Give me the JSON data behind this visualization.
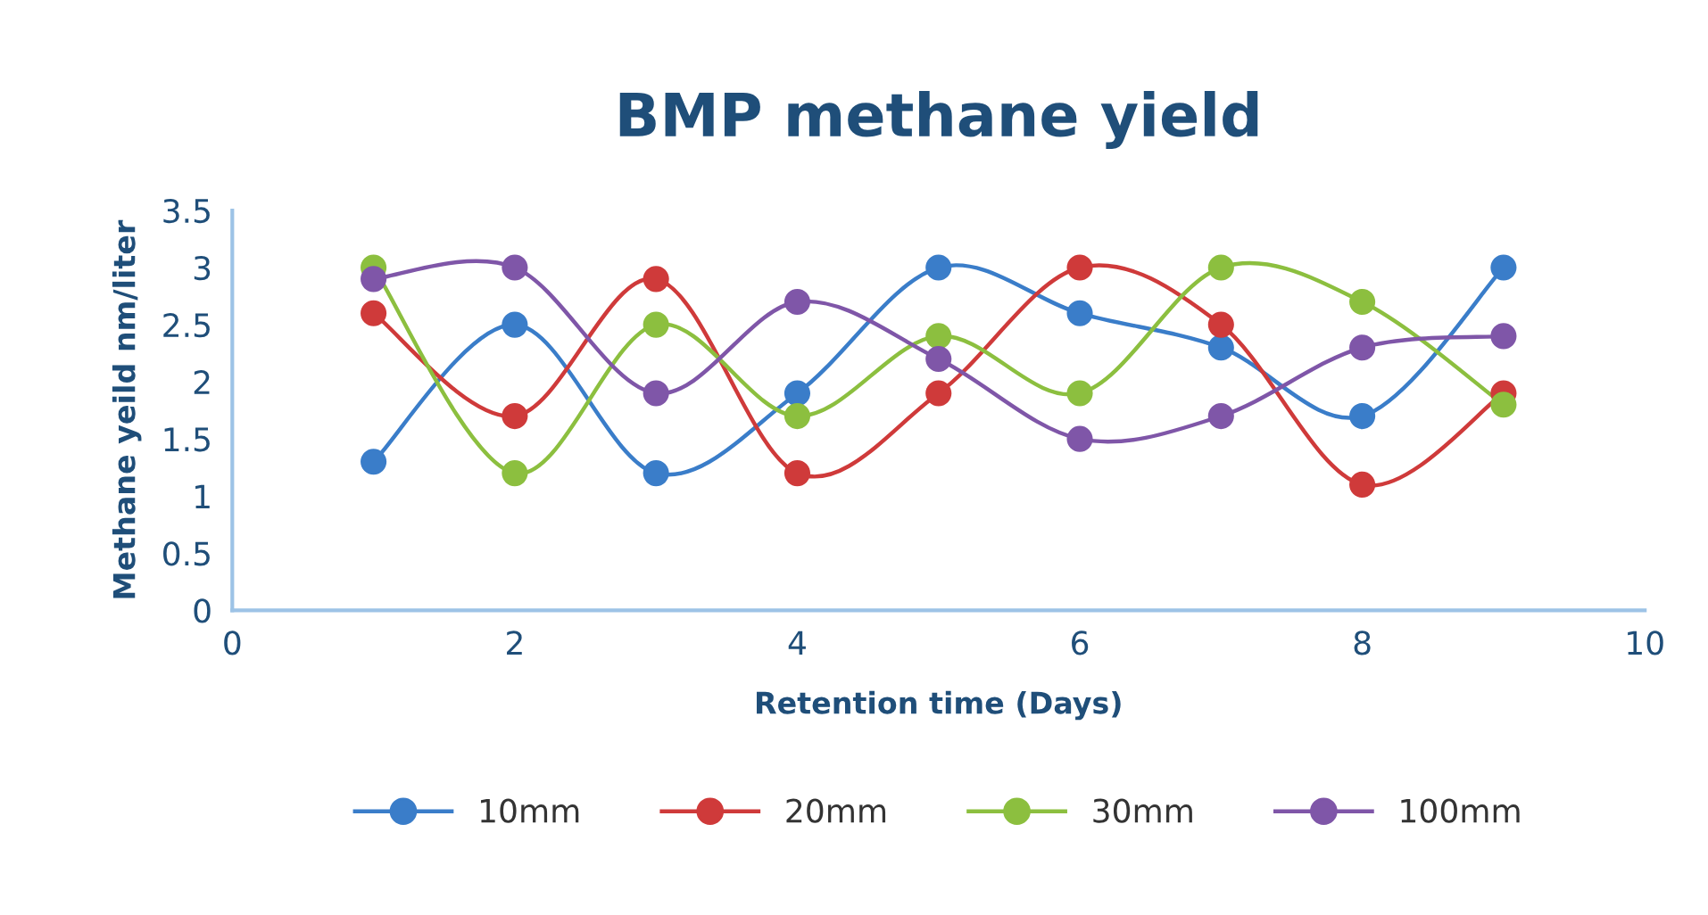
{
  "chart_data": {
    "type": "line",
    "title": "BMP methane yield",
    "xlabel": "Retention time (Days)",
    "ylabel": "Methane yeild nm/liter",
    "x": [
      1,
      2,
      3,
      4,
      5,
      6,
      7,
      8,
      9
    ],
    "series": [
      {
        "name": "10mm",
        "color": "#3a7dc9",
        "values": [
          1.3,
          2.5,
          1.2,
          1.9,
          3.0,
          2.6,
          2.3,
          1.7,
          3.0
        ]
      },
      {
        "name": "20mm",
        "color": "#cf3a3a",
        "values": [
          2.6,
          1.7,
          2.9,
          1.2,
          1.9,
          3.0,
          2.5,
          1.1,
          1.9
        ]
      },
      {
        "name": "30mm",
        "color": "#8cbf3f",
        "values": [
          3.0,
          1.2,
          2.5,
          1.7,
          2.4,
          1.9,
          3.0,
          2.7,
          1.8
        ]
      },
      {
        "name": "100mm",
        "color": "#7f56a8",
        "values": [
          2.9,
          3.0,
          1.9,
          2.7,
          2.2,
          1.5,
          1.7,
          2.3,
          2.4
        ]
      }
    ],
    "xlim": [
      0,
      10
    ],
    "xticks": [
      0,
      2,
      4,
      6,
      8,
      10
    ],
    "ylim": [
      0,
      3.5
    ],
    "yticks": [
      0,
      0.5,
      1,
      1.5,
      2,
      2.5,
      3,
      3.5
    ],
    "grid": false,
    "legend": "bottom",
    "marker": "circle",
    "line_style": "solid"
  }
}
